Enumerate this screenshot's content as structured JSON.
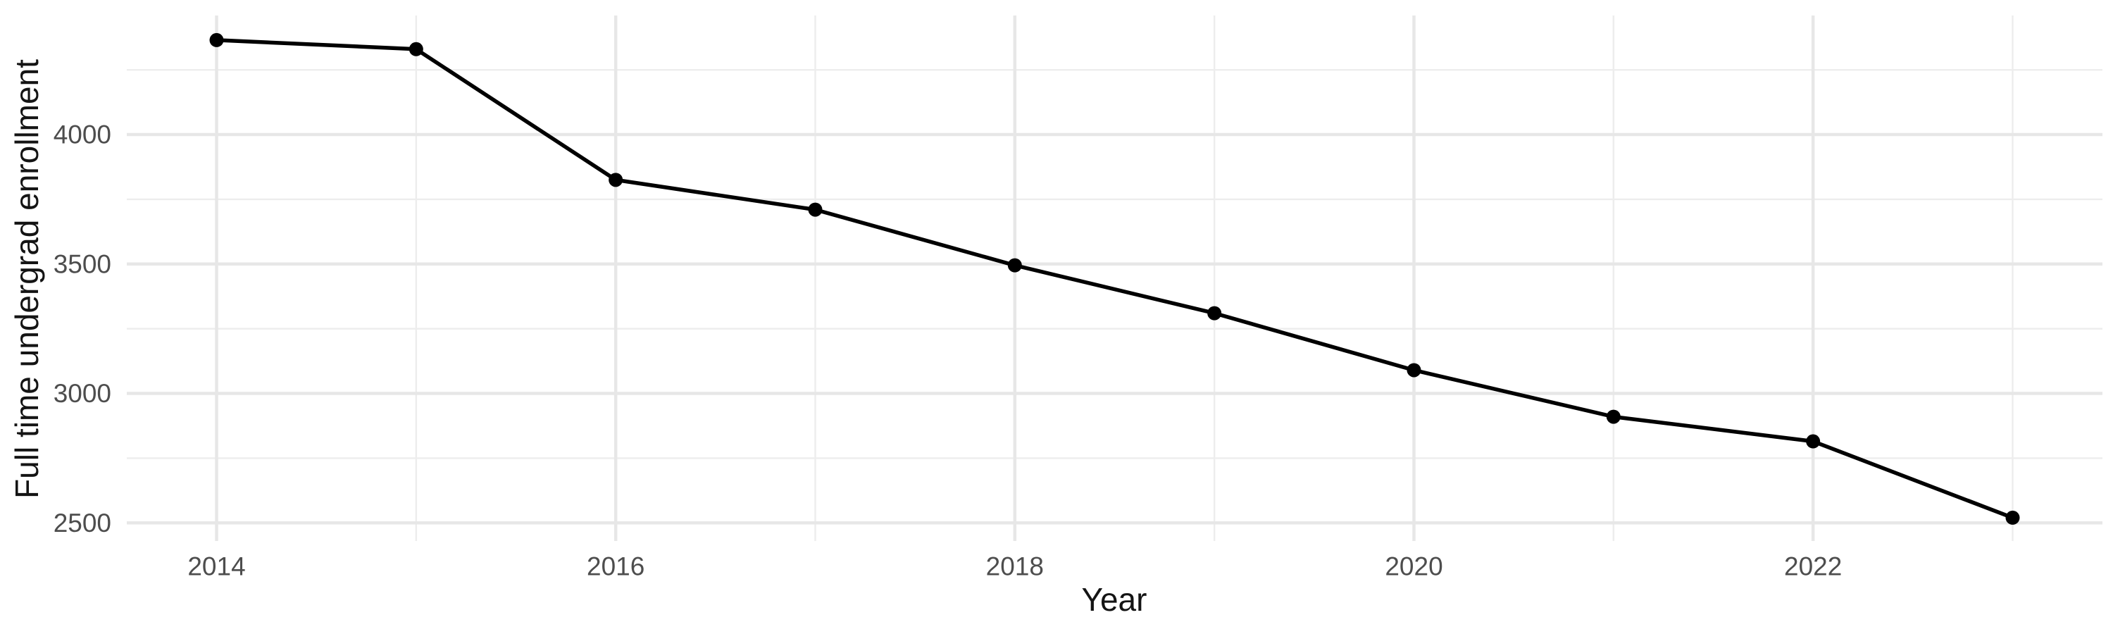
{
  "page": {
    "background": "#ffffff"
  },
  "chart_data": {
    "type": "line",
    "title": "",
    "x": [
      2014,
      2015,
      2016,
      2017,
      2018,
      2019,
      2020,
      2021,
      2022,
      2023
    ],
    "series": [
      {
        "name": "Full time undergrad enrollment",
        "values": [
          4365,
          4330,
          3825,
          3710,
          3495,
          3310,
          3090,
          2910,
          2815,
          2520
        ]
      }
    ],
    "xlabel": "Year",
    "ylabel": "Full time undergrad enrollment",
    "x_ticks": [
      2014,
      2016,
      2018,
      2020,
      2022
    ],
    "x_minor_gridlines": [
      2015,
      2017,
      2019,
      2021,
      2023
    ],
    "y_ticks": [
      2500,
      3000,
      3500,
      4000
    ],
    "y_minor_gridlines": [
      2750,
      3250,
      3750,
      4250
    ],
    "xlim": [
      2013.55,
      2023.45
    ],
    "ylim": [
      2430,
      4460
    ],
    "grid": true,
    "legend": false,
    "marker": "point",
    "style": {
      "line_color": "#000000",
      "point_color": "#000000",
      "line_width": 5.5,
      "point_radius": 10,
      "grid_major_color": "#e7e7e7",
      "grid_minor_color": "#ededed",
      "grid_major_width": 4.5,
      "grid_minor_width": 2.4,
      "tick_label_color": "#4d4d4d",
      "axis_title_color": "#141414",
      "background": "#ffffff"
    }
  }
}
